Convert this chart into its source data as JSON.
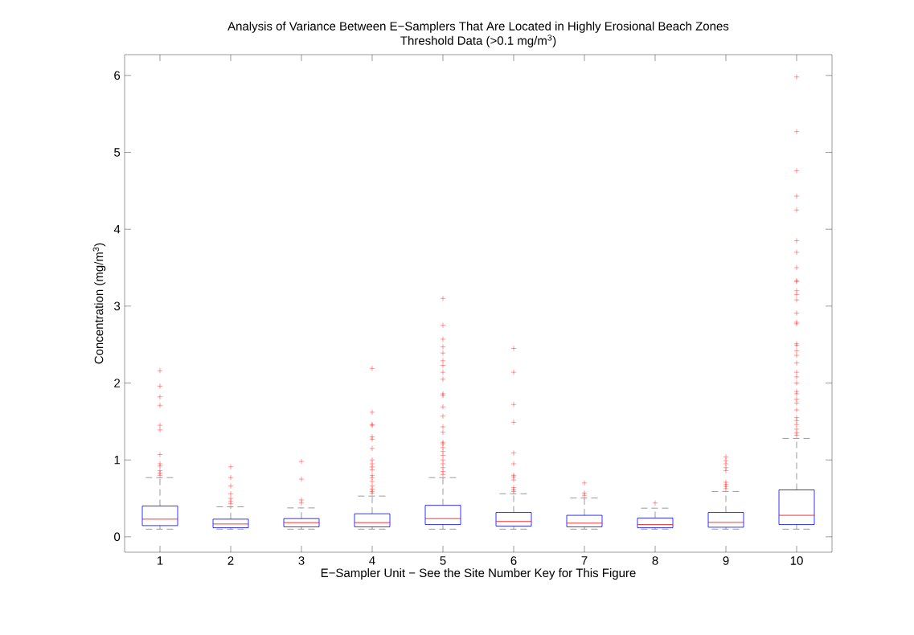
{
  "chart_data": {
    "type": "box",
    "title": "Analysis of Variance Between E−Samplers That Are Located in Highly Erosional Beach Zones",
    "subtitle": "Threshold Data (>0.1 mg/m$^{3}$)",
    "xlabel": "E−Sampler Unit − See the Site Number Key for This Figure",
    "ylabel": "Concentration (mg/m$^{3}$)",
    "categories": [
      "1",
      "2",
      "3",
      "4",
      "5",
      "6",
      "7",
      "8",
      "9",
      "10"
    ],
    "color": "#0000ff",
    "marker": "cross",
    "ylim": [
      -0.2,
      6.27
    ],
    "yticks": [
      0,
      1,
      2,
      3,
      4,
      5,
      6
    ],
    "boxes": [
      {
        "low": 0.1,
        "q1": 0.146,
        "median": 0.23,
        "q3": 0.4,
        "high": 0.77,
        "outliers": [
          2.16,
          1.96,
          1.82,
          1.71,
          1.45,
          1.39,
          1.07,
          0.95,
          0.92,
          0.86,
          0.83,
          0.8
        ]
      },
      {
        "low": 0.1,
        "q1": 0.118,
        "median": 0.167,
        "q3": 0.23,
        "high": 0.39,
        "outliers": [
          0.91,
          0.77,
          0.66,
          0.56,
          0.5,
          0.46,
          0.43
        ]
      },
      {
        "low": 0.1,
        "q1": 0.13,
        "median": 0.185,
        "q3": 0.237,
        "high": 0.376,
        "outliers": [
          0.98,
          0.75,
          0.48,
          0.44
        ]
      },
      {
        "low": 0.1,
        "q1": 0.13,
        "median": 0.185,
        "q3": 0.3,
        "high": 0.53,
        "outliers": [
          2.19,
          1.62,
          1.46,
          1.45,
          1.3,
          1.27,
          1.15,
          1.0,
          0.95,
          0.91,
          0.87,
          0.8,
          0.77,
          0.72,
          0.66,
          0.62,
          0.59,
          0.57
        ]
      },
      {
        "low": 0.1,
        "q1": 0.16,
        "median": 0.237,
        "q3": 0.41,
        "high": 0.77,
        "outliers": [
          3.1,
          2.75,
          2.57,
          2.47,
          2.39,
          2.29,
          2.23,
          2.14,
          2.05,
          1.86,
          1.84,
          1.69,
          1.57,
          1.43,
          1.36,
          1.23,
          1.21,
          1.16,
          1.11,
          1.06,
          1.0,
          0.95,
          0.9,
          0.85,
          0.81
        ]
      },
      {
        "low": 0.1,
        "q1": 0.14,
        "median": 0.2,
        "q3": 0.317,
        "high": 0.56,
        "outliers": [
          2.45,
          2.14,
          1.72,
          1.49,
          1.09,
          0.95,
          0.8,
          0.78,
          0.74,
          0.64,
          0.61,
          0.59
        ]
      },
      {
        "low": 0.1,
        "q1": 0.13,
        "median": 0.178,
        "q3": 0.28,
        "high": 0.505,
        "outliers": [
          0.7,
          0.57,
          0.54
        ]
      },
      {
        "low": 0.1,
        "q1": 0.118,
        "median": 0.16,
        "q3": 0.244,
        "high": 0.373,
        "outliers": [
          0.44
        ]
      },
      {
        "low": 0.1,
        "q1": 0.125,
        "median": 0.188,
        "q3": 0.317,
        "high": 0.59,
        "outliers": [
          1.04,
          0.99,
          0.95,
          0.9,
          0.86,
          0.71,
          0.68,
          0.655,
          0.627
        ]
      },
      {
        "low": 0.1,
        "q1": 0.16,
        "median": 0.28,
        "q3": 0.61,
        "high": 1.28,
        "outliers": [
          5.98,
          5.27,
          4.76,
          4.43,
          4.25,
          3.85,
          3.7,
          3.5,
          3.33,
          3.32,
          3.2,
          3.15,
          3.08,
          2.91,
          2.79,
          2.77,
          2.51,
          2.49,
          2.42,
          2.36,
          2.26,
          2.14,
          2.08,
          2.0,
          1.89,
          1.86,
          1.79,
          1.74,
          1.65,
          1.55,
          1.51,
          1.46,
          1.4,
          1.35,
          1.32
        ]
      }
    ]
  }
}
